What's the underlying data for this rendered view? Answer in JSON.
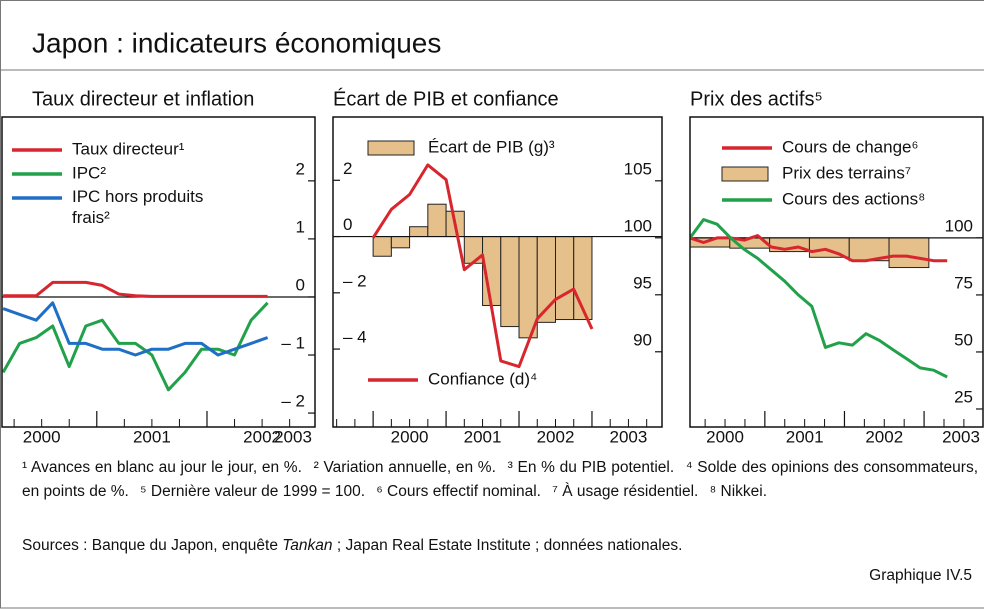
{
  "title": "Japon : indicateurs économiques",
  "chart_data": [
    {
      "type": "line",
      "title": "Taux directeur et inflation",
      "x": [
        2000.15,
        2000.3,
        2000.45,
        2000.6,
        2000.75,
        2000.9,
        2001.05,
        2001.2,
        2001.35,
        2001.5,
        2001.65,
        2001.8,
        2001.95,
        2002.1,
        2002.25,
        2002.4,
        2002.55
      ],
      "xlim": [
        2000.14,
        2002.98
      ],
      "xticks": [
        2000,
        2001,
        2002,
        2003
      ],
      "ylim": [
        -2.24,
        3.1
      ],
      "yticks": [
        {
          "value": -2,
          "label": "– 2"
        },
        {
          "value": -1,
          "label": "– 1"
        },
        0,
        1,
        2
      ],
      "baseline": 0,
      "series": [
        {
          "name": "Taux directeur¹",
          "color": "#d7262e",
          "values": [
            0.02,
            0.02,
            0.02,
            0.25,
            0.25,
            0.25,
            0.2,
            0.05,
            0.02,
            0.01,
            0.01,
            0.01,
            0.01,
            0.01,
            0.01,
            0.01,
            0.01
          ]
        },
        {
          "name": "IPC²",
          "color": "#21a24a",
          "values": [
            -1.3,
            -0.8,
            -0.7,
            -0.5,
            -1.2,
            -0.5,
            -0.4,
            -0.8,
            -0.8,
            -1.0,
            -1.6,
            -1.3,
            -0.9,
            -0.9,
            -1.0,
            -0.4,
            -0.1
          ]
        },
        {
          "name": "IPC hors produits frais²",
          "color": "#1f6fc6",
          "values": [
            -0.2,
            -0.3,
            -0.4,
            -0.1,
            -0.8,
            -0.8,
            -0.9,
            -0.9,
            -1.0,
            -0.9,
            -0.9,
            -0.8,
            -0.8,
            -1.0,
            -0.9,
            -0.8,
            -0.7
          ]
        }
      ]
    },
    {
      "type": "combo",
      "title": "Écart de PIB et confiance",
      "xlim": [
        1999.45,
        2003.96
      ],
      "xticks": [
        2000,
        2001,
        2002,
        2003
      ],
      "ylim": [
        -6.77,
        4.25
      ],
      "yticks": [
        {
          "value": -4,
          "label": "– 4"
        },
        {
          "value": -2,
          "label": "– 2"
        },
        0,
        2
      ],
      "y2lim": [
        83.4,
        110.6
      ],
      "y2ticks": [
        90,
        95,
        100,
        105
      ],
      "baseline": 0,
      "series": [
        {
          "name": "Écart de PIB (g)³",
          "type": "bar",
          "color": "#e6c08a",
          "x": [
            2000.125,
            2000.375,
            2000.625,
            2000.875,
            2001.125,
            2001.375,
            2001.625,
            2001.875,
            2002.125,
            2002.375,
            2002.625,
            2002.875
          ],
          "values": [
            -0.7,
            -0.4,
            0.35,
            1.15,
            0.9,
            -0.95,
            -2.45,
            -3.2,
            -3.6,
            -3.05,
            -2.95,
            -2.95
          ]
        },
        {
          "name": "Confiance (d)⁴",
          "type": "line",
          "axis": "y2",
          "color": "#d7262e",
          "x": [
            2000.0,
            2000.25,
            2000.5,
            2000.75,
            2001.0,
            2001.25,
            2001.5,
            2001.75,
            2002.0,
            2002.25,
            2002.5,
            2002.75,
            2003.0
          ],
          "values": [
            100,
            102.5,
            103.8,
            106.4,
            105.1,
            97.2,
            98.5,
            89.2,
            88.7,
            92.9,
            94.6,
            95.5,
            92
          ]
        }
      ]
    },
    {
      "type": "combo",
      "title": "Prix des actifs⁵",
      "x": [
        2000.06,
        2000.23,
        2000.4,
        2000.57,
        2000.74,
        2000.91,
        2001.08,
        2001.25,
        2001.42,
        2001.59,
        2001.76,
        2001.93,
        2002.1,
        2002.27,
        2002.44,
        2002.61,
        2002.78,
        2002.95,
        2003.12,
        2003.29
      ],
      "xlim": [
        2000.06,
        2003.74
      ],
      "xticks": [
        2000,
        2001,
        2002,
        2003
      ],
      "ylim": [
        17.1,
        153
      ],
      "yticks": [
        25,
        50,
        75,
        100
      ],
      "baseline": 100,
      "series": [
        {
          "name": "Cours de change⁶",
          "type": "line",
          "color": "#d7262e",
          "values": [
            100,
            98,
            100,
            100,
            99,
            101,
            96,
            95,
            96,
            94,
            95,
            93,
            90,
            90,
            91,
            92,
            92,
            91,
            90,
            90
          ]
        },
        {
          "name": "Prix des terrains⁷",
          "type": "bar",
          "color": "#e6c08a",
          "x": [
            2000.31,
            2000.81,
            2001.31,
            2001.81,
            2002.31,
            2002.81
          ],
          "values": [
            96,
            95.5,
            94,
            91.5,
            90,
            87
          ]
        },
        {
          "name": "Cours des actions⁸",
          "type": "line",
          "color": "#21a24a",
          "values": [
            100,
            108,
            106,
            100,
            95,
            91,
            86,
            81,
            75,
            70,
            52,
            54,
            53,
            58,
            55,
            51,
            47,
            43,
            42,
            39
          ]
        }
      ]
    }
  ],
  "footnotes": [
    "¹ Avances en blanc au jour le jour, en %.",
    "² Variation annuelle, en %.",
    "³ En % du PIB potentiel.",
    "⁴ Solde des opinions des consommateurs, en points de %.",
    "⁵ Dernière valeur de 1999 = 100.",
    "⁶ Cours effectif nominal.",
    "⁷ À usage résidentiel.",
    "⁸ Nikkei."
  ],
  "sources": {
    "before": "Sources : Banque du Japon, enquête ",
    "italic": "Tankan",
    "after": " ; Japan Real Estate Institute ; données nationales."
  },
  "figure_label": "Graphique IV.5"
}
